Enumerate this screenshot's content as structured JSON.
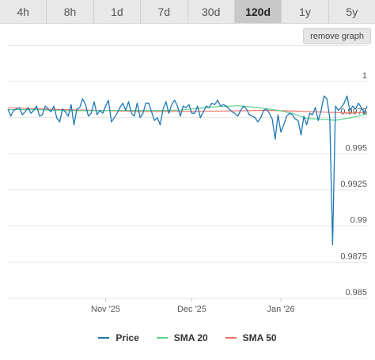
{
  "tabs": [
    {
      "label": "4h",
      "active": false
    },
    {
      "label": "8h",
      "active": false
    },
    {
      "label": "1d",
      "active": false
    },
    {
      "label": "7d",
      "active": false
    },
    {
      "label": "30d",
      "active": false
    },
    {
      "label": "120d",
      "active": true
    },
    {
      "label": "1y",
      "active": false
    },
    {
      "label": "5y",
      "active": false
    }
  ],
  "remove_graph_label": "remove graph",
  "colors": {
    "price": "#1f77b4",
    "sma20": "#5fd08a",
    "sma50": "#f27266",
    "grid": "#e6e6e6"
  },
  "chart_data": {
    "type": "line",
    "ylim": [
      0.985,
      1.0
    ],
    "y_ticks": [
      "1",
      "0.9975",
      "0.995",
      "0.9925",
      "0.99",
      "0.9875",
      "0.985"
    ],
    "x_start": "2025-09-28",
    "x_end": "2026-01-31",
    "x_ticks": [
      {
        "label": "Nov '25",
        "date": "2025-11-01"
      },
      {
        "label": "Dec '25",
        "date": "2025-12-01"
      },
      {
        "label": "Jan '26",
        "date": "2026-01-01"
      }
    ],
    "grid": true,
    "legend_position": "bottom",
    "series": [
      {
        "name": "Price",
        "color": "#1f77b4",
        "x": [
          "2025-09-28",
          "2025-09-29",
          "2025-09-30",
          "2025-10-01",
          "2025-10-02",
          "2025-10-03",
          "2025-10-04",
          "2025-10-05",
          "2025-10-06",
          "2025-10-07",
          "2025-10-08",
          "2025-10-09",
          "2025-10-10",
          "2025-10-11",
          "2025-10-12",
          "2025-10-13",
          "2025-10-14",
          "2025-10-15",
          "2025-10-16",
          "2025-10-17",
          "2025-10-18",
          "2025-10-19",
          "2025-10-20",
          "2025-10-21",
          "2025-10-22",
          "2025-10-23",
          "2025-10-24",
          "2025-10-25",
          "2025-10-26",
          "2025-10-27",
          "2025-10-28",
          "2025-10-29",
          "2025-10-30",
          "2025-10-31",
          "2025-11-01",
          "2025-11-02",
          "2025-11-03",
          "2025-11-04",
          "2025-11-05",
          "2025-11-06",
          "2025-11-07",
          "2025-11-08",
          "2025-11-09",
          "2025-11-10",
          "2025-11-11",
          "2025-11-12",
          "2025-11-13",
          "2025-11-14",
          "2025-11-15",
          "2025-11-16",
          "2025-11-17",
          "2025-11-18",
          "2025-11-19",
          "2025-11-20",
          "2025-11-21",
          "2025-11-22",
          "2025-11-23",
          "2025-11-24",
          "2025-11-25",
          "2025-11-26",
          "2025-11-27",
          "2025-11-28",
          "2025-11-29",
          "2025-11-30",
          "2025-12-01",
          "2025-12-02",
          "2025-12-03",
          "2025-12-04",
          "2025-12-05",
          "2025-12-06",
          "2025-12-07",
          "2025-12-08",
          "2025-12-09",
          "2025-12-10",
          "2025-12-11",
          "2025-12-12",
          "2025-12-13",
          "2025-12-14",
          "2025-12-15",
          "2025-12-16",
          "2025-12-17",
          "2025-12-18",
          "2025-12-19",
          "2025-12-20",
          "2025-12-21",
          "2025-12-22",
          "2025-12-23",
          "2025-12-24",
          "2025-12-25",
          "2025-12-26",
          "2025-12-27",
          "2025-12-28",
          "2025-12-29",
          "2025-12-30",
          "2025-12-31",
          "2026-01-01",
          "2026-01-02",
          "2026-01-03",
          "2026-01-04",
          "2026-01-05",
          "2026-01-06",
          "2026-01-07",
          "2026-01-08",
          "2026-01-09",
          "2026-01-10",
          "2026-01-11",
          "2026-01-12",
          "2026-01-13",
          "2026-01-14",
          "2026-01-15",
          "2026-01-16",
          "2026-01-17",
          "2026-01-18",
          "2026-01-19",
          "2026-01-20",
          "2026-01-21",
          "2026-01-22",
          "2026-01-23",
          "2026-01-24",
          "2026-01-25",
          "2026-01-26",
          "2026-01-27",
          "2026-01-28",
          "2026-01-29",
          "2026-01-30",
          "2026-01-31"
        ],
        "y": [
          0.9981,
          0.9976,
          0.998,
          0.9981,
          0.9982,
          0.9977,
          0.9979,
          0.9982,
          0.9978,
          0.998,
          0.9983,
          0.9976,
          0.9977,
          0.9983,
          0.9981,
          0.9979,
          0.9983,
          0.9975,
          0.9972,
          0.9981,
          0.9979,
          0.9976,
          0.9984,
          0.997,
          0.9981,
          0.9982,
          0.9988,
          0.9984,
          0.9976,
          0.9978,
          0.9986,
          0.9977,
          0.998,
          0.9978,
          0.9983,
          0.9987,
          0.9972,
          0.9975,
          0.9978,
          0.9982,
          0.9985,
          0.998,
          0.9986,
          0.9978,
          0.9976,
          0.9985,
          0.9975,
          0.9978,
          0.9985,
          0.9985,
          0.9979,
          0.9973,
          0.9975,
          0.997,
          0.9981,
          0.9986,
          0.9978,
          0.9984,
          0.9987,
          0.9983,
          0.9976,
          0.9983,
          0.9982,
          0.9984,
          0.9978,
          0.9978,
          0.9983,
          0.9975,
          0.9979,
          0.9983,
          0.9982,
          0.9985,
          0.9984,
          0.9987,
          0.9983,
          0.9984,
          0.9983,
          0.9981,
          0.9979,
          0.9978,
          0.9976,
          0.998,
          0.9983,
          0.9981,
          0.9977,
          0.9976,
          0.9975,
          0.9972,
          0.9975,
          0.998,
          0.9981,
          0.9978,
          0.9974,
          0.996,
          0.9977,
          0.9965,
          0.997,
          0.9976,
          0.9978,
          0.9977,
          0.9974,
          0.9973,
          0.9963,
          0.9976,
          0.997,
          0.9978,
          0.9977,
          0.9982,
          0.9973,
          0.998,
          0.999,
          0.9988,
          0.9975,
          0.9887,
          0.9983,
          0.998,
          0.9982,
          0.9985,
          0.999,
          0.998,
          0.9983,
          0.9981,
          0.9985,
          0.9982,
          0.9978,
          0.9983
        ]
      },
      {
        "name": "SMA 20",
        "color": "#5fd08a",
        "x": [
          "2025-09-28",
          "2025-10-08",
          "2025-10-18",
          "2025-10-28",
          "2025-11-07",
          "2025-11-17",
          "2025-11-27",
          "2025-12-07",
          "2025-12-17",
          "2025-12-24",
          "2025-12-31",
          "2026-01-05",
          "2026-01-10",
          "2026-01-15",
          "2026-01-20",
          "2026-01-25",
          "2026-01-31"
        ],
        "y": [
          0.99805,
          0.99805,
          0.99798,
          0.99798,
          0.998,
          0.99798,
          0.99802,
          0.99822,
          0.99832,
          0.9982,
          0.998,
          0.9978,
          0.99745,
          0.99738,
          0.99732,
          0.99748,
          0.99775
        ]
      },
      {
        "name": "SMA 50",
        "color": "#f27266",
        "x": [
          "2025-09-28",
          "2025-10-13",
          "2025-10-28",
          "2025-11-12",
          "2025-11-27",
          "2025-12-12",
          "2025-12-27",
          "2026-01-06",
          "2026-01-16",
          "2026-01-24",
          "2026-01-31"
        ],
        "y": [
          0.99818,
          0.99808,
          0.998,
          0.99793,
          0.99793,
          0.99796,
          0.998,
          0.99795,
          0.99788,
          0.99783,
          0.99785
        ]
      }
    ]
  },
  "legend": [
    {
      "label": "Price",
      "color": "#1f77b4"
    },
    {
      "label": "SMA 20",
      "color": "#5fd08a"
    },
    {
      "label": "SMA 50",
      "color": "#f27266"
    }
  ]
}
